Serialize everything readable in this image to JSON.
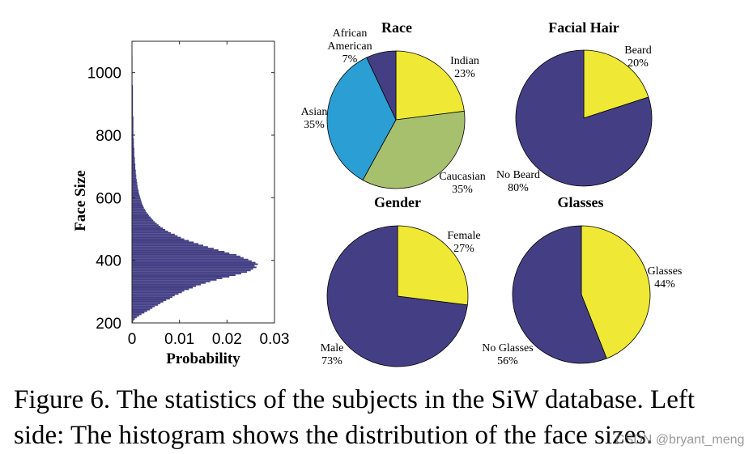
{
  "colors": {
    "navy": "#443f85",
    "yellow": "#efe835",
    "green": "#a6c06d",
    "blue": "#2b9fd3"
  },
  "chart_data": [
    {
      "type": "bar",
      "orientation": "horizontal-histogram",
      "xlabel": "Probability",
      "ylabel": "Face Size",
      "xlim": [
        0,
        0.03
      ],
      "ylim": [
        200,
        1100
      ],
      "x_ticks": [
        "0",
        "0.01",
        "0.02",
        "0.03"
      ],
      "y_ticks": [
        "200",
        "400",
        "600",
        "800",
        "1000"
      ],
      "bin_width": 5,
      "bins": [
        {
          "y": 200,
          "p": 0.0002
        },
        {
          "y": 205,
          "p": 0.0003
        },
        {
          "y": 210,
          "p": 0.0006
        },
        {
          "y": 215,
          "p": 0.001
        },
        {
          "y": 220,
          "p": 0.0015
        },
        {
          "y": 225,
          "p": 0.002
        },
        {
          "y": 230,
          "p": 0.0026
        },
        {
          "y": 235,
          "p": 0.0032
        },
        {
          "y": 240,
          "p": 0.0038
        },
        {
          "y": 245,
          "p": 0.0043
        },
        {
          "y": 250,
          "p": 0.0048
        },
        {
          "y": 255,
          "p": 0.0055
        },
        {
          "y": 260,
          "p": 0.006
        },
        {
          "y": 265,
          "p": 0.0066
        },
        {
          "y": 270,
          "p": 0.0072
        },
        {
          "y": 275,
          "p": 0.008
        },
        {
          "y": 280,
          "p": 0.0085
        },
        {
          "y": 285,
          "p": 0.009
        },
        {
          "y": 290,
          "p": 0.0098
        },
        {
          "y": 295,
          "p": 0.0105
        },
        {
          "y": 300,
          "p": 0.011
        },
        {
          "y": 305,
          "p": 0.012
        },
        {
          "y": 310,
          "p": 0.0128
        },
        {
          "y": 315,
          "p": 0.0135
        },
        {
          "y": 320,
          "p": 0.0145
        },
        {
          "y": 325,
          "p": 0.0155
        },
        {
          "y": 330,
          "p": 0.0165
        },
        {
          "y": 335,
          "p": 0.0178
        },
        {
          "y": 340,
          "p": 0.019
        },
        {
          "y": 345,
          "p": 0.0205
        },
        {
          "y": 350,
          "p": 0.0218
        },
        {
          "y": 355,
          "p": 0.023
        },
        {
          "y": 360,
          "p": 0.0242
        },
        {
          "y": 365,
          "p": 0.025
        },
        {
          "y": 370,
          "p": 0.0255
        },
        {
          "y": 375,
          "p": 0.0262
        },
        {
          "y": 380,
          "p": 0.0258
        },
        {
          "y": 385,
          "p": 0.0265
        },
        {
          "y": 390,
          "p": 0.026
        },
        {
          "y": 395,
          "p": 0.0252
        },
        {
          "y": 400,
          "p": 0.0245
        },
        {
          "y": 405,
          "p": 0.0235
        },
        {
          "y": 410,
          "p": 0.0228
        },
        {
          "y": 415,
          "p": 0.022
        },
        {
          "y": 420,
          "p": 0.0205
        },
        {
          "y": 425,
          "p": 0.0195
        },
        {
          "y": 430,
          "p": 0.0182
        },
        {
          "y": 435,
          "p": 0.0172
        },
        {
          "y": 440,
          "p": 0.016
        },
        {
          "y": 445,
          "p": 0.015
        },
        {
          "y": 450,
          "p": 0.014
        },
        {
          "y": 455,
          "p": 0.013
        },
        {
          "y": 460,
          "p": 0.012
        },
        {
          "y": 465,
          "p": 0.011
        },
        {
          "y": 470,
          "p": 0.0103
        },
        {
          "y": 475,
          "p": 0.0096
        },
        {
          "y": 480,
          "p": 0.009
        },
        {
          "y": 485,
          "p": 0.0082
        },
        {
          "y": 490,
          "p": 0.0076
        },
        {
          "y": 495,
          "p": 0.007
        },
        {
          "y": 500,
          "p": 0.0065
        },
        {
          "y": 505,
          "p": 0.006
        },
        {
          "y": 510,
          "p": 0.0056
        },
        {
          "y": 515,
          "p": 0.0052
        },
        {
          "y": 520,
          "p": 0.0048
        },
        {
          "y": 525,
          "p": 0.0045
        },
        {
          "y": 530,
          "p": 0.0042
        },
        {
          "y": 535,
          "p": 0.0039
        },
        {
          "y": 540,
          "p": 0.0036
        },
        {
          "y": 545,
          "p": 0.0034
        },
        {
          "y": 550,
          "p": 0.0031
        },
        {
          "y": 555,
          "p": 0.0029
        },
        {
          "y": 560,
          "p": 0.0027
        },
        {
          "y": 565,
          "p": 0.0025
        },
        {
          "y": 570,
          "p": 0.0024
        },
        {
          "y": 575,
          "p": 0.0022
        },
        {
          "y": 580,
          "p": 0.0021
        },
        {
          "y": 585,
          "p": 0.002
        },
        {
          "y": 590,
          "p": 0.0019
        },
        {
          "y": 595,
          "p": 0.0018
        },
        {
          "y": 600,
          "p": 0.0017
        },
        {
          "y": 605,
          "p": 0.0016
        },
        {
          "y": 610,
          "p": 0.0015
        },
        {
          "y": 615,
          "p": 0.0014
        },
        {
          "y": 620,
          "p": 0.0014
        },
        {
          "y": 625,
          "p": 0.0013
        },
        {
          "y": 630,
          "p": 0.0012
        },
        {
          "y": 635,
          "p": 0.0012
        },
        {
          "y": 640,
          "p": 0.0011
        },
        {
          "y": 645,
          "p": 0.0011
        },
        {
          "y": 650,
          "p": 0.001
        },
        {
          "y": 655,
          "p": 0.001
        },
        {
          "y": 660,
          "p": 0.0009
        },
        {
          "y": 665,
          "p": 0.0009
        },
        {
          "y": 670,
          "p": 0.0009
        },
        {
          "y": 675,
          "p": 0.0008
        },
        {
          "y": 680,
          "p": 0.0008
        },
        {
          "y": 685,
          "p": 0.0008
        },
        {
          "y": 690,
          "p": 0.0007
        },
        {
          "y": 695,
          "p": 0.0007
        },
        {
          "y": 700,
          "p": 0.0007
        },
        {
          "y": 710,
          "p": 0.0006
        },
        {
          "y": 720,
          "p": 0.0006
        },
        {
          "y": 730,
          "p": 0.0005
        },
        {
          "y": 740,
          "p": 0.0005
        },
        {
          "y": 750,
          "p": 0.0005
        },
        {
          "y": 760,
          "p": 0.0004
        },
        {
          "y": 770,
          "p": 0.0004
        },
        {
          "y": 780,
          "p": 0.0004
        },
        {
          "y": 790,
          "p": 0.0003
        },
        {
          "y": 800,
          "p": 0.0003
        },
        {
          "y": 820,
          "p": 0.0003
        },
        {
          "y": 840,
          "p": 0.0003
        },
        {
          "y": 860,
          "p": 0.0002
        },
        {
          "y": 880,
          "p": 0.0002
        },
        {
          "y": 900,
          "p": 0.0002
        },
        {
          "y": 930,
          "p": 0.0002
        },
        {
          "y": 960,
          "p": 0.0001
        },
        {
          "y": 990,
          "p": 0.0001
        },
        {
          "y": 1020,
          "p": 0.0001
        },
        {
          "y": 1050,
          "p": 0.0001
        }
      ]
    },
    {
      "type": "pie",
      "title": "Race",
      "slices": [
        {
          "label_lines": [
            "Indian",
            "23%"
          ],
          "value": 23,
          "color": "#efe835"
        },
        {
          "label_lines": [
            "Caucasian",
            "35%"
          ],
          "value": 35,
          "color": "#a6c06d"
        },
        {
          "label_lines": [
            "Asian",
            "35%"
          ],
          "value": 35,
          "color": "#2b9fd3"
        },
        {
          "label_lines": [
            "African",
            "American",
            "7%"
          ],
          "value": 7,
          "color": "#443f85"
        }
      ]
    },
    {
      "type": "pie",
      "title": "Facial Hair",
      "slices": [
        {
          "label_lines": [
            "Beard",
            "20%"
          ],
          "value": 20,
          "color": "#efe835"
        },
        {
          "label_lines": [
            "No Beard",
            "80%"
          ],
          "value": 80,
          "color": "#443f85"
        }
      ]
    },
    {
      "type": "pie",
      "title": "Gender",
      "slices": [
        {
          "label_lines": [
            "Female",
            "27%"
          ],
          "value": 27,
          "color": "#efe835"
        },
        {
          "label_lines": [
            "Male",
            "73%"
          ],
          "value": 73,
          "color": "#443f85"
        }
      ]
    },
    {
      "type": "pie",
      "title": "Glasses",
      "slices": [
        {
          "label_lines": [
            "Glasses",
            "44%"
          ],
          "value": 44,
          "color": "#efe835"
        },
        {
          "label_lines": [
            "No Glasses",
            "56%"
          ],
          "value": 56,
          "color": "#443f85"
        }
      ]
    }
  ],
  "caption": {
    "line1": "Figure 6. The statistics of the subjects in the SiW database. Left",
    "line2": "side: The histogram shows the distribution of the face sizes."
  },
  "watermark": "CSDN @bryant_meng"
}
